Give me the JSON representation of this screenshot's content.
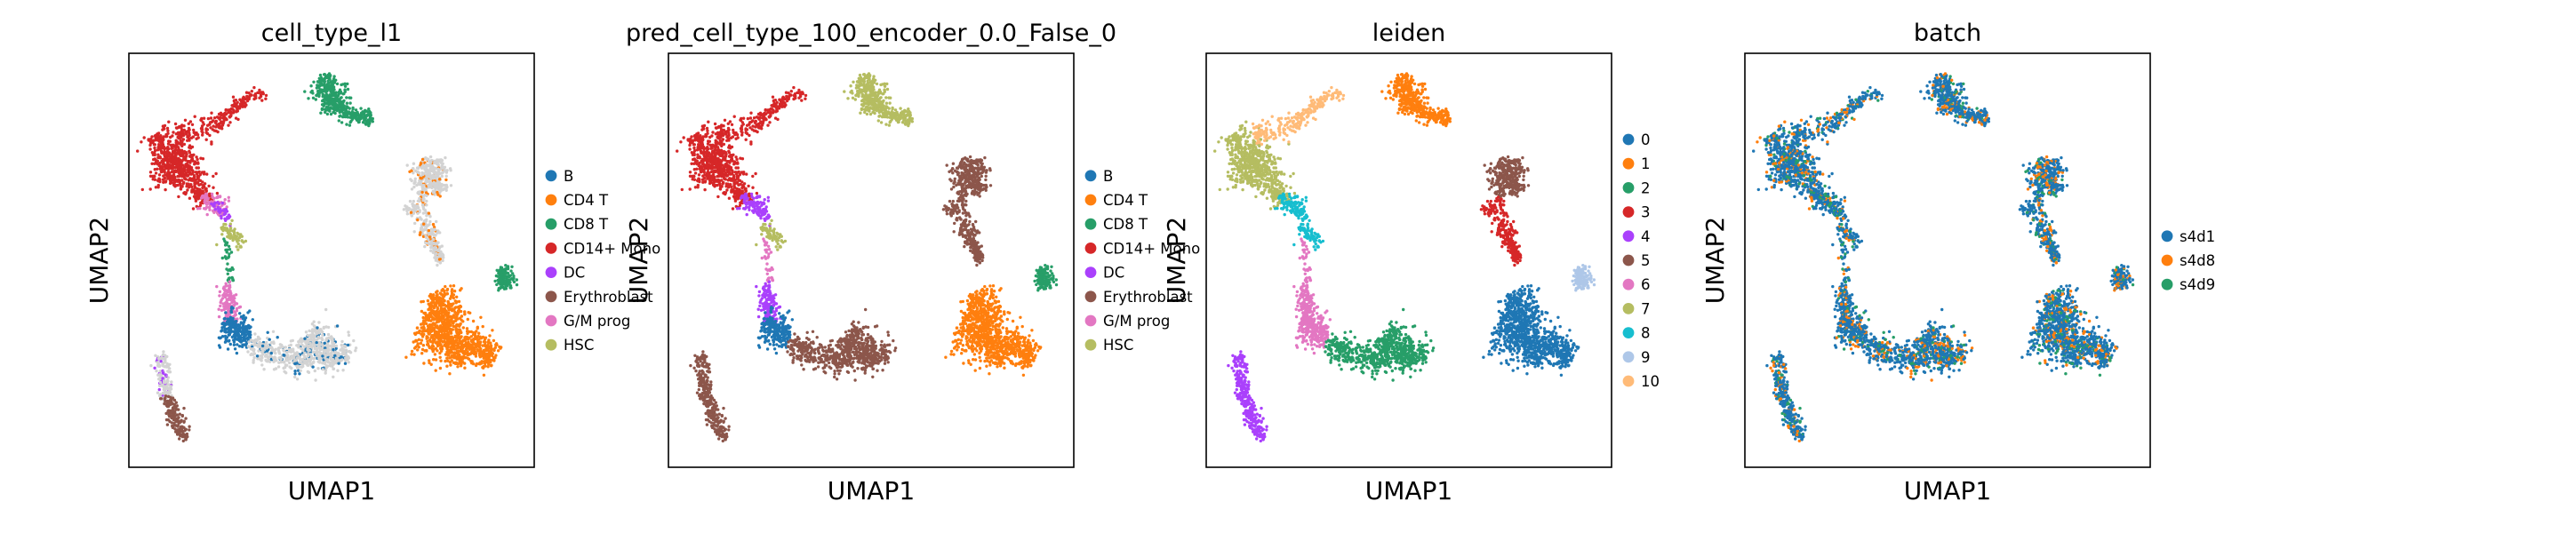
{
  "chart_data": [
    {
      "type": "scatter",
      "title": "cell_type_l1",
      "xlabel": "UMAP1",
      "ylabel": "UMAP2",
      "color_by": "cell_type_l1",
      "legend_position": "right",
      "legend": [
        {
          "name": "B",
          "color": "#1f77b4"
        },
        {
          "name": "CD4 T",
          "color": "#ff7f0e"
        },
        {
          "name": "CD8 T",
          "color": "#279e68"
        },
        {
          "name": "CD14+ Mono",
          "color": "#d62728"
        },
        {
          "name": "DC",
          "color": "#aa40fc"
        },
        {
          "name": "Erythroblast",
          "color": "#8c564b"
        },
        {
          "name": "G/M prog",
          "color": "#e377c2"
        },
        {
          "name": "HSC",
          "color": "#b5bd61"
        }
      ]
    },
    {
      "type": "scatter",
      "title": "pred_cell_type_100_encoder_0.0_False_0",
      "xlabel": "UMAP1",
      "ylabel": "UMAP2",
      "color_by": "pred_cell_type_100_encoder_0.0_False_0",
      "legend_position": "right",
      "legend": [
        {
          "name": "B",
          "color": "#1f77b4"
        },
        {
          "name": "CD4 T",
          "color": "#ff7f0e"
        },
        {
          "name": "CD8 T",
          "color": "#279e68"
        },
        {
          "name": "CD14+ Mono",
          "color": "#d62728"
        },
        {
          "name": "DC",
          "color": "#aa40fc"
        },
        {
          "name": "Erythroblast",
          "color": "#8c564b"
        },
        {
          "name": "G/M prog",
          "color": "#e377c2"
        },
        {
          "name": "HSC",
          "color": "#b5bd61"
        }
      ]
    },
    {
      "type": "scatter",
      "title": "leiden",
      "xlabel": "UMAP1",
      "ylabel": "UMAP2",
      "color_by": "leiden",
      "legend_position": "right",
      "legend": [
        {
          "name": "0",
          "color": "#1f77b4"
        },
        {
          "name": "1",
          "color": "#ff7f0e"
        },
        {
          "name": "2",
          "color": "#279e68"
        },
        {
          "name": "3",
          "color": "#d62728"
        },
        {
          "name": "4",
          "color": "#aa40fc"
        },
        {
          "name": "5",
          "color": "#8c564b"
        },
        {
          "name": "6",
          "color": "#e377c2"
        },
        {
          "name": "7",
          "color": "#b5bd61"
        },
        {
          "name": "8",
          "color": "#17becf"
        },
        {
          "name": "9",
          "color": "#aec7e8"
        },
        {
          "name": "10",
          "color": "#ffbb78"
        }
      ]
    },
    {
      "type": "scatter",
      "title": "batch",
      "xlabel": "UMAP1",
      "ylabel": "UMAP2",
      "color_by": "batch",
      "legend_position": "right",
      "legend": [
        {
          "name": "s4d1",
          "color": "#1f77b4"
        },
        {
          "name": "s4d8",
          "color": "#ff7f0e"
        },
        {
          "name": "s4d9",
          "color": "#279e68"
        }
      ]
    }
  ]
}
